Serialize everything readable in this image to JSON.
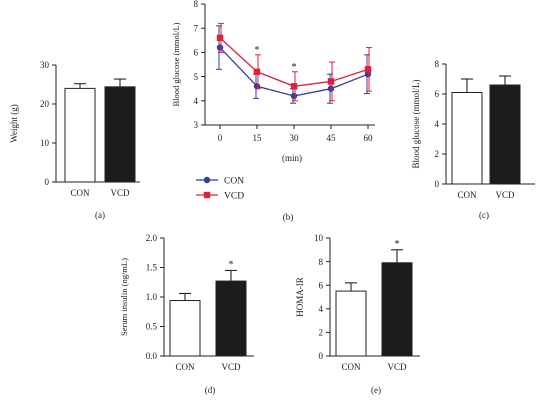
{
  "colors": {
    "axis": "#222222",
    "con_fill": "#ffffff",
    "vcd_fill": "#1c1c1c",
    "con_line": "#2f3f9e",
    "vcd_line": "#e0203a",
    "sig": "#888888"
  },
  "chart_data": [
    {
      "panel": "(a)",
      "type": "bar",
      "categories": [
        "CON",
        "VCD"
      ],
      "values": [
        24.0,
        24.4
      ],
      "errors": [
        1.2,
        2.0
      ],
      "significant": [
        false,
        false
      ],
      "ylabel": "Weight (g)",
      "ylim": [
        0,
        30
      ],
      "yticks": [
        "0",
        "10",
        "20",
        "30"
      ]
    },
    {
      "panel": "(b)",
      "type": "line",
      "x": [
        0,
        15,
        30,
        45,
        60
      ],
      "xticks": [
        "0",
        "15",
        "30",
        "45",
        "60"
      ],
      "xlabel": "(min)",
      "ylabel": "Blood glucose (mmol/L)",
      "ylim": [
        3,
        8
      ],
      "yticks": [
        "3",
        "4",
        "5",
        "6",
        "7",
        "8"
      ],
      "significant_x": [
        15,
        30
      ],
      "legend_position": "bottom-left",
      "series": [
        {
          "name": "CON",
          "marker": "circle",
          "values": [
            6.2,
            4.6,
            4.2,
            4.5,
            5.1
          ],
          "errors": [
            0.9,
            0.5,
            0.3,
            0.6,
            0.8
          ]
        },
        {
          "name": "VCD",
          "marker": "square",
          "values": [
            6.6,
            5.2,
            4.6,
            4.8,
            5.3
          ],
          "errors": [
            0.6,
            0.7,
            0.6,
            0.8,
            0.9
          ]
        }
      ]
    },
    {
      "panel": "(c)",
      "type": "bar",
      "categories": [
        "CON",
        "VCD"
      ],
      "values": [
        6.1,
        6.6
      ],
      "errors": [
        0.9,
        0.6
      ],
      "significant": [
        false,
        false
      ],
      "ylabel": "Blood glucose (mmol/L)",
      "ylim": [
        0,
        8
      ],
      "yticks": [
        "0",
        "2",
        "4",
        "6",
        "8"
      ]
    },
    {
      "panel": "(d)",
      "type": "bar",
      "categories": [
        "CON",
        "VCD"
      ],
      "values": [
        0.94,
        1.27
      ],
      "errors": [
        0.12,
        0.18
      ],
      "significant": [
        false,
        true
      ],
      "ylabel": "Serum insulin (ng/mL)",
      "ylim": [
        0,
        2.0
      ],
      "yticks": [
        "0.0",
        "0.5",
        "1.0",
        "1.5",
        "2.0"
      ]
    },
    {
      "panel": "(e)",
      "type": "bar",
      "categories": [
        "CON",
        "VCD"
      ],
      "values": [
        5.5,
        7.9
      ],
      "errors": [
        0.7,
        1.1
      ],
      "significant": [
        false,
        true
      ],
      "ylabel": "HOMA-IR",
      "ylim": [
        0,
        10
      ],
      "yticks": [
        "0",
        "2",
        "4",
        "6",
        "8",
        "10"
      ]
    }
  ]
}
